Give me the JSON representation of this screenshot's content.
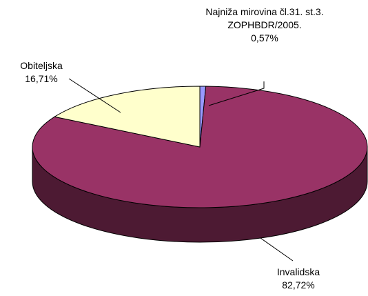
{
  "chart_data": {
    "type": "pie",
    "style": "3d",
    "categories": [
      "Najniža mirovina čl.31. st.3. ZOPHBDR/2005.",
      "Invalidska",
      "Obiteljska"
    ],
    "values": [
      0.57,
      82.72,
      16.71
    ],
    "value_labels": [
      "0,57%",
      "82,72%",
      "16,71%"
    ],
    "colors": [
      "#9999ff",
      "#993366",
      "#ffffcc"
    ],
    "side_colors": [
      "#5c5c99",
      "#4d1a33",
      "#99997a"
    ]
  }
}
